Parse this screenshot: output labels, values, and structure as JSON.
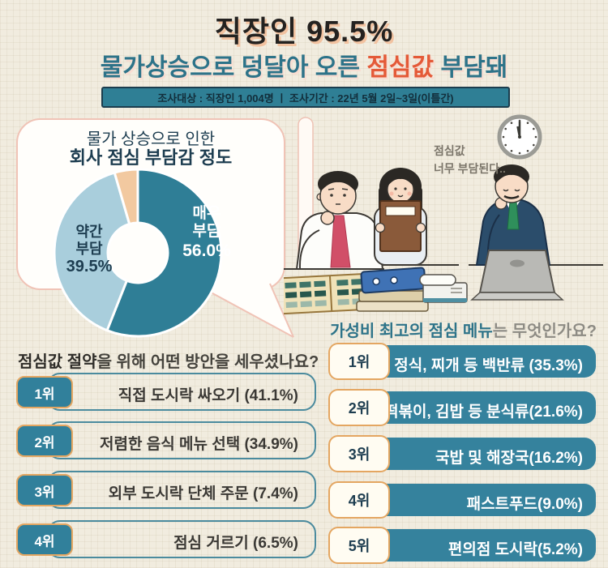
{
  "header": {
    "title": "직장인 95.5%",
    "subtitle": {
      "prefix": "물가상승으로 덩달아 오른 ",
      "highlight": "점심값",
      "suffix": " 부담돼"
    },
    "survey_bar": "조사대상 : 직장인 1,004명  ㅣ  조사기간 : 22년 5월 2일~3일(이틀간)"
  },
  "chart_data": {
    "type": "pie",
    "donut": true,
    "title_line1": "물가 상승으로 인한",
    "title_line2": "회사 점심 부담감 정도",
    "unit": "%",
    "start_angle_deg": -90,
    "clockwise": true,
    "slices": [
      {
        "name": "매우 부담",
        "value": 56.0,
        "pct_label": "56.0%",
        "lines": [
          "매우",
          "부담"
        ],
        "color": "#2f7e96"
      },
      {
        "name": "약간 부담",
        "value": 39.5,
        "pct_label": "39.5%",
        "lines": [
          "약간",
          "부담"
        ],
        "color": "#a9cedc"
      },
      {
        "name": "",
        "value": 4.5,
        "pct_label": "",
        "lines": [],
        "color": "#f2c9a0"
      }
    ]
  },
  "illustration": {
    "speech_line1": "점심값",
    "speech_line2": "너무 부담된다..",
    "clock_icon": "wall-clock-12:00"
  },
  "left_list": {
    "heading_bold": "점심값 절약",
    "heading_rest": "을 위해 어떤 방안을 세우셨나요?",
    "items": [
      {
        "rank": "1위",
        "label": "직접 도시락 싸오기 (41.1%)"
      },
      {
        "rank": "2위",
        "label": "저렴한 음식 메뉴 선택 (34.9%)"
      },
      {
        "rank": "3위",
        "label": "외부 도시락 단체 주문 (7.4%)"
      },
      {
        "rank": "4위",
        "label": "점심 거르기 (6.5%)"
      }
    ]
  },
  "right_list": {
    "heading_bold": "가성비 최고의 점심 메뉴",
    "heading_rest": "는 무엇인가요?",
    "items": [
      {
        "rank": "1위",
        "label": "정식, 찌개 등 백반류 (35.3%)"
      },
      {
        "rank": "2위",
        "label": "떡볶이, 김밥 등 분식류(21.6%)"
      },
      {
        "rank": "3위",
        "label": "국밥 및 해장국(16.2%)"
      },
      {
        "rank": "4위",
        "label": "패스트푸드(9.0%)"
      },
      {
        "rank": "5위",
        "label": "편의점 도시락(5.2%)"
      }
    ]
  },
  "colors": {
    "background": "#f1ecdf",
    "teal": "#2f7e96",
    "bar_teal": "#35829d",
    "light_blue": "#a9cedc",
    "peach": "#f2c9a0",
    "orange_highlight": "#e45a38",
    "badge_border": "#e4a661",
    "navy_text": "#1d3d50",
    "card_border": "#f0c3b6"
  }
}
